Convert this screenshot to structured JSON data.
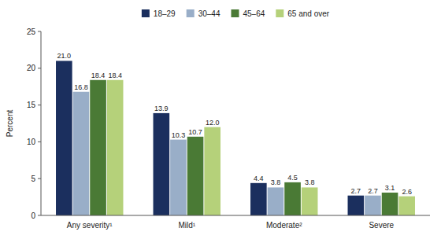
{
  "chart_data": {
    "type": "bar",
    "categories": [
      "Any severity¹",
      "Mild¹",
      "Moderate²",
      "Severe"
    ],
    "series": [
      {
        "name": "18–29",
        "color": "#1b2f5e",
        "values": [
          21.0,
          13.9,
          4.4,
          2.7
        ],
        "value_labels": [
          "21.0",
          "13.9",
          "4.4",
          "2.7"
        ]
      },
      {
        "name": "30–44",
        "color": "#99aec8",
        "values": [
          16.8,
          10.3,
          3.8,
          2.7
        ],
        "value_labels": [
          "16.8",
          "10.3",
          "3.8",
          "2.7"
        ]
      },
      {
        "name": "45–64",
        "color": "#4a7a35",
        "values": [
          18.4,
          10.7,
          4.5,
          3.1
        ],
        "value_labels": [
          "18.4",
          "10.7",
          "4.5",
          "3.1"
        ]
      },
      {
        "name": "65 and over",
        "color": "#b5d17a",
        "values": [
          18.4,
          12.0,
          3.8,
          2.6
        ],
        "value_labels": [
          "18.4",
          "12.0",
          "3.8",
          "2.6"
        ]
      }
    ],
    "ylabel": "Percent",
    "ylim": [
      0,
      25
    ],
    "yticks": [
      0,
      5,
      10,
      15,
      20,
      25
    ],
    "grid": false,
    "legend": "top",
    "data_labels": true
  }
}
